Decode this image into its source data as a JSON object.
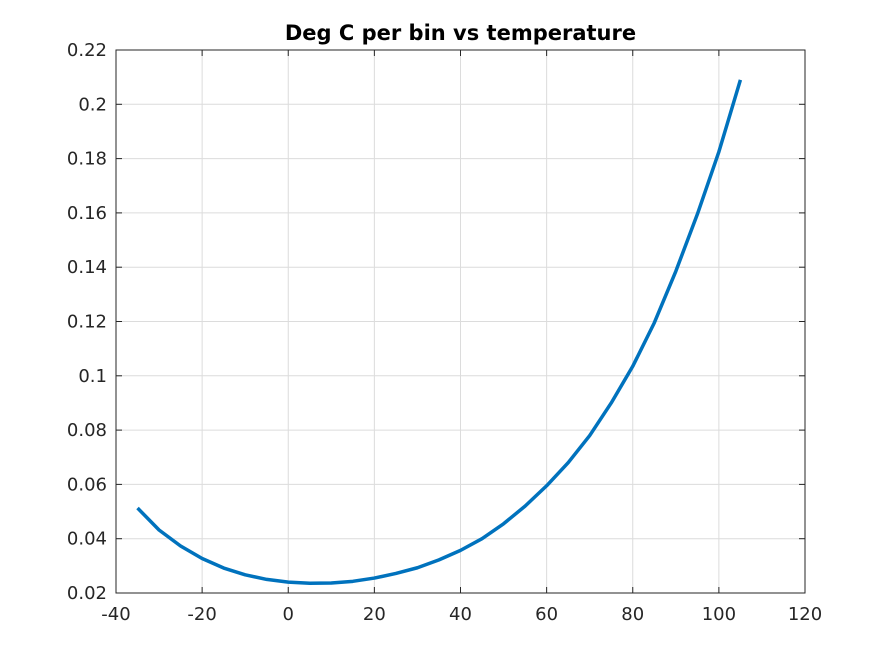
{
  "chart_data": {
    "type": "line",
    "title": "Deg C per bin vs temperature",
    "xlabel": "",
    "ylabel": "",
    "xlim": [
      -40,
      120
    ],
    "ylim": [
      0.02,
      0.22
    ],
    "xticks": [
      -40,
      -20,
      0,
      20,
      40,
      60,
      80,
      100,
      120
    ],
    "xtick_labels": [
      "-40",
      "-20",
      "0",
      "20",
      "40",
      "60",
      "80",
      "100",
      "120"
    ],
    "yticks": [
      0.02,
      0.04,
      0.06,
      0.08,
      0.1,
      0.12,
      0.14,
      0.16,
      0.18,
      0.2,
      0.22
    ],
    "ytick_labels": [
      "0.02",
      "0.04",
      "0.06",
      "0.08",
      "0.1",
      "0.12",
      "0.14",
      "0.16",
      "0.18",
      "0.2",
      "0.22"
    ],
    "grid": true,
    "series": [
      {
        "color": "#0072bd",
        "x": [
          -35,
          -30,
          -25,
          -20,
          -15,
          -10,
          -5,
          0,
          5,
          10,
          15,
          20,
          25,
          30,
          35,
          40,
          45,
          50,
          55,
          60,
          65,
          70,
          75,
          80,
          85,
          90,
          95,
          100,
          105
        ],
        "y": [
          0.0513,
          0.0432,
          0.0373,
          0.0327,
          0.0292,
          0.0267,
          0.025,
          0.024,
          0.0236,
          0.0237,
          0.0243,
          0.0255,
          0.0272,
          0.0293,
          0.0322,
          0.0357,
          0.04,
          0.0455,
          0.052,
          0.0595,
          0.068,
          0.078,
          0.09,
          0.1035,
          0.1195,
          0.1385,
          0.1595,
          0.1825,
          0.209
        ]
      }
    ]
  }
}
